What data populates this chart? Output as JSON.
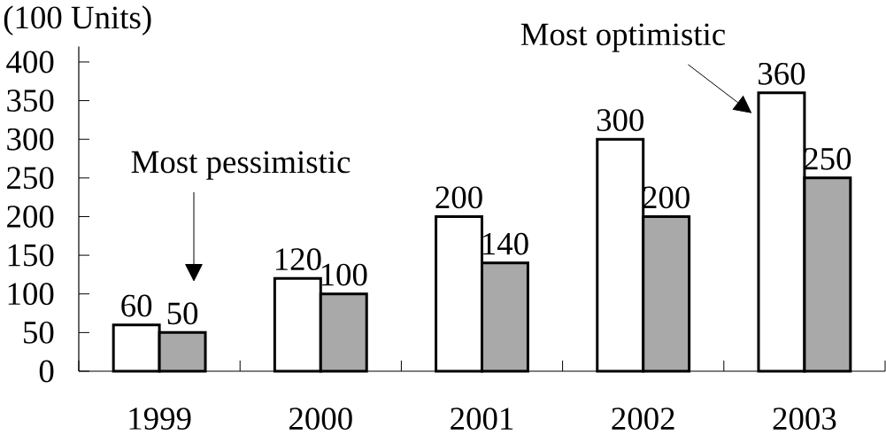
{
  "chart_data": {
    "type": "bar",
    "ylabel": "(100 Units)",
    "categories": [
      "1999",
      "2000",
      "2001",
      "2002",
      "2003"
    ],
    "series": [
      {
        "color": "#ffffff",
        "values": [
          60,
          120,
          200,
          300,
          360
        ]
      },
      {
        "color": "#a9a9a9",
        "values": [
          50,
          100,
          140,
          200,
          250
        ]
      }
    ],
    "ylim": [
      0,
      420
    ],
    "yticks": [
      0,
      50,
      100,
      150,
      200,
      250,
      300,
      350,
      400
    ],
    "data_labels": true,
    "annotations": [
      "Most pessimistic",
      {
        "text": "Most optimistic",
        "x": "2003",
        "y": 360
      }
    ]
  }
}
